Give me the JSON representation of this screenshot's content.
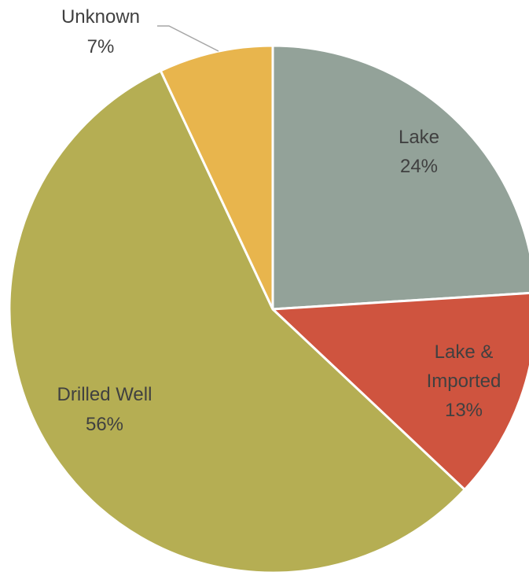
{
  "chart_data": {
    "type": "pie",
    "categories": [
      "Lake",
      "Lake & Imported",
      "Drilled Well",
      "Unknown"
    ],
    "values": [
      24,
      13,
      56,
      7
    ],
    "value_labels": [
      "24%",
      "13%",
      "56%",
      "7%"
    ],
    "colors": [
      "#93a299",
      "#cf543f",
      "#b5ae53",
      "#e8b54d"
    ]
  }
}
